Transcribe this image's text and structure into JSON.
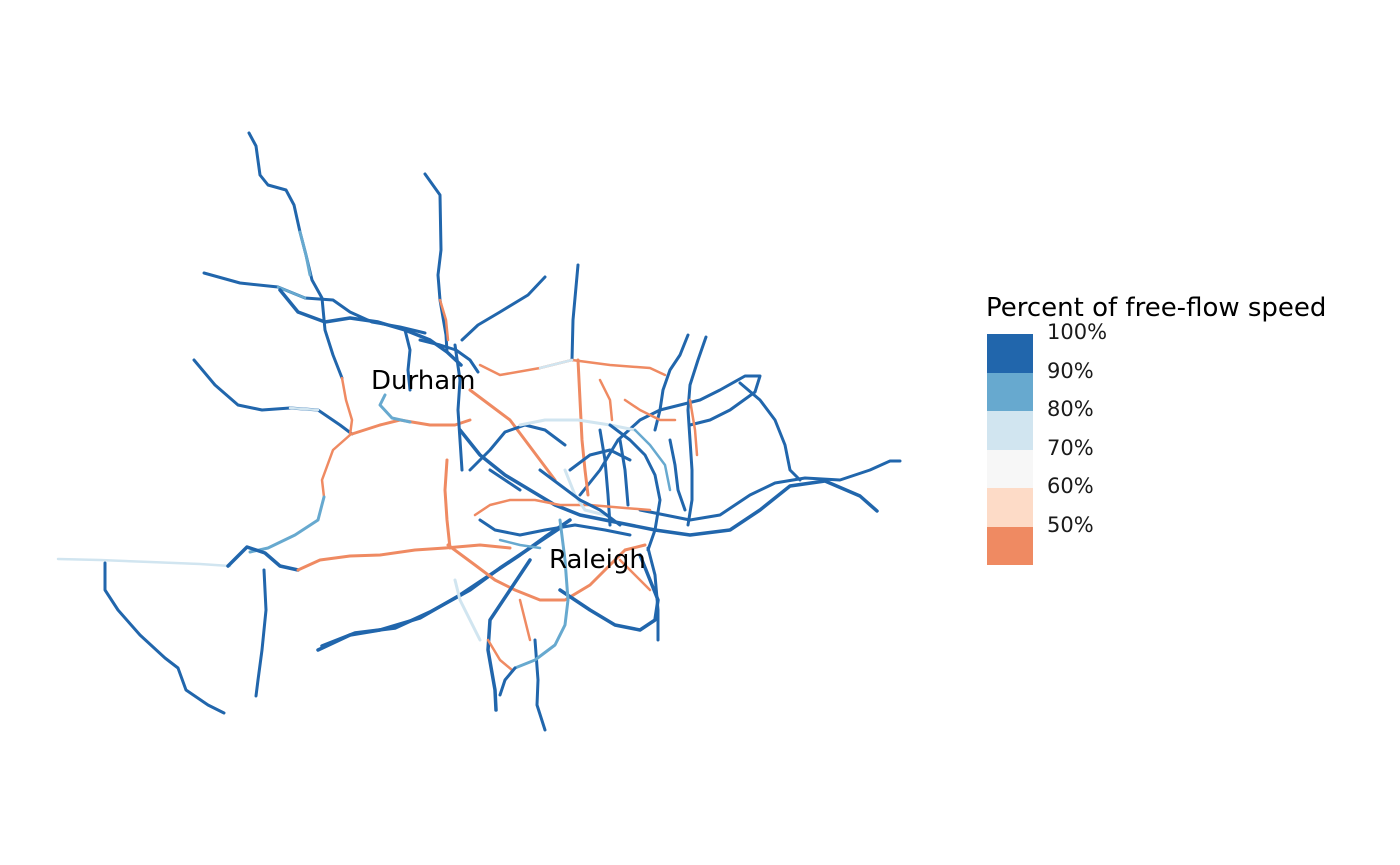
{
  "map": {
    "cities": [
      {
        "name": "Durham"
      },
      {
        "name": "Raleigh"
      }
    ]
  },
  "legend": {
    "title": "Percent of free-flow speed",
    "items": [
      {
        "label": "100%",
        "color": "#2166ac"
      },
      {
        "label": "90%",
        "color": "#67a9cf"
      },
      {
        "label": "80%",
        "color": "#d1e5f0"
      },
      {
        "label": "70%",
        "color": "#f7f7f7"
      },
      {
        "label": "60%",
        "color": "#fddbc7"
      },
      {
        "label": "50%",
        "color": "#ef8a62"
      }
    ]
  },
  "colors": {
    "free_flow": "#2166ac",
    "moderate": "#67a9cf",
    "light_slow": "#d1e5f0",
    "congested": "#ef8a62"
  }
}
